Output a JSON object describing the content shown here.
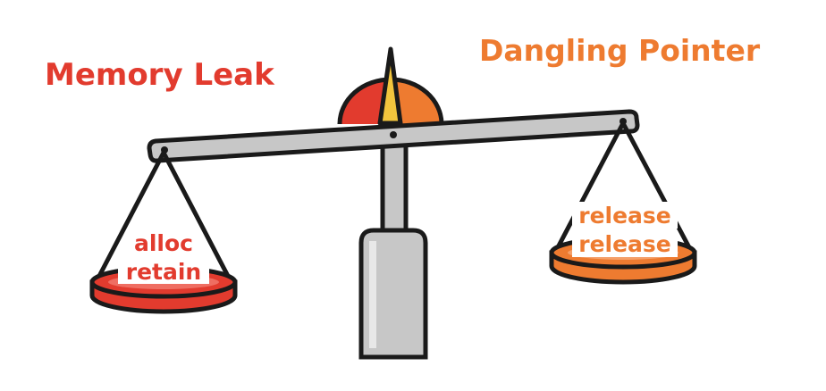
{
  "labels": {
    "left_title": "Memory Leak",
    "right_title": "Dangling Pointer",
    "left_pan_line1": "alloc",
    "left_pan_line2": "retain",
    "right_pan_line1": "release",
    "right_pan_line2": "release"
  },
  "colors": {
    "leak_red": "#e23b2e",
    "dangling_orange": "#ee7b30",
    "outline": "#1a1a1a",
    "metal_gray": "#c7c7c7",
    "needle_yellow": "#f2c53d"
  }
}
